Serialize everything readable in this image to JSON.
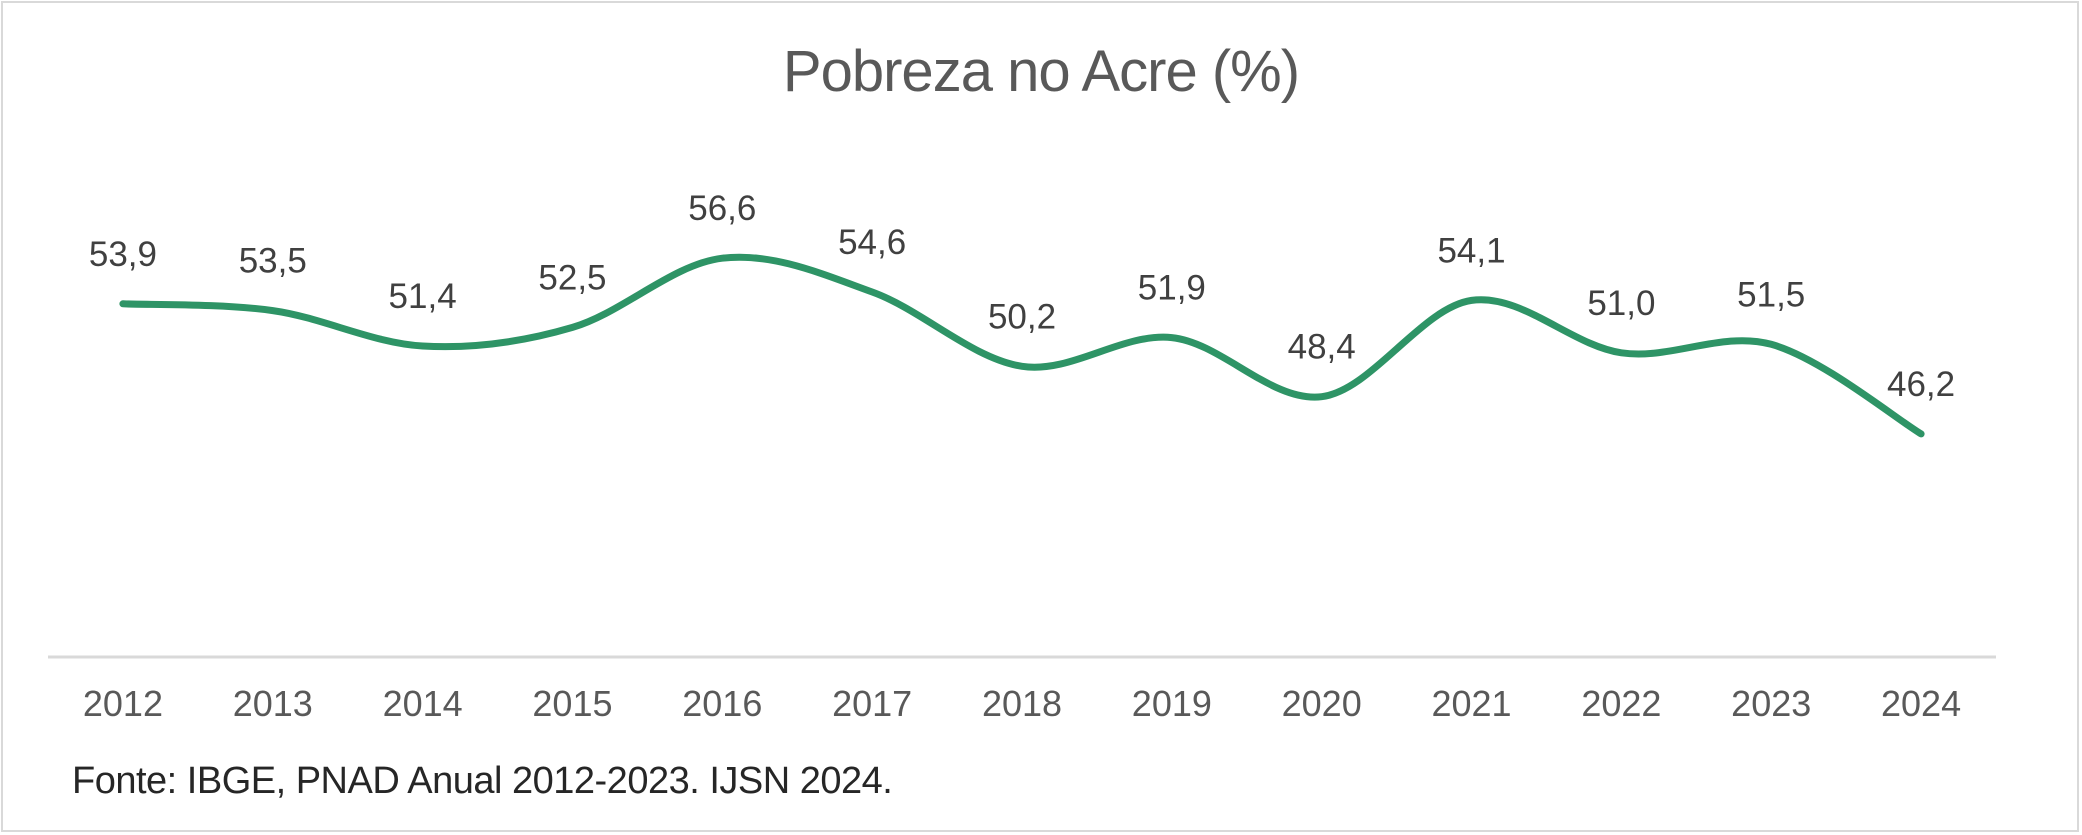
{
  "chart_data": {
    "type": "line",
    "title": "Pobreza no Acre (%)",
    "xlabel": "",
    "ylabel": "",
    "categories": [
      "2012",
      "2013",
      "2014",
      "2015",
      "2016",
      "2017",
      "2018",
      "2019",
      "2020",
      "2021",
      "2022",
      "2023",
      "2024"
    ],
    "series": [
      {
        "name": "Pobreza no Acre (%)",
        "values": [
          53.9,
          53.5,
          51.4,
          52.5,
          56.6,
          54.6,
          50.2,
          51.9,
          48.4,
          54.1,
          51.0,
          51.5,
          46.2
        ],
        "labels": [
          "53,9",
          "53,5",
          "51,4",
          "52,5",
          "56,6",
          "54,6",
          "50,2",
          "51,9",
          "48,4",
          "54,1",
          "51,0",
          "51,5",
          "46,2"
        ],
        "color": "#2e9466",
        "smooth": true
      }
    ],
    "ylim": [
      33,
      63
    ],
    "grid": false,
    "legend": "none"
  },
  "source": "Fonte: IBGE, PNAD Anual 2012-2023. IJSN 2024."
}
